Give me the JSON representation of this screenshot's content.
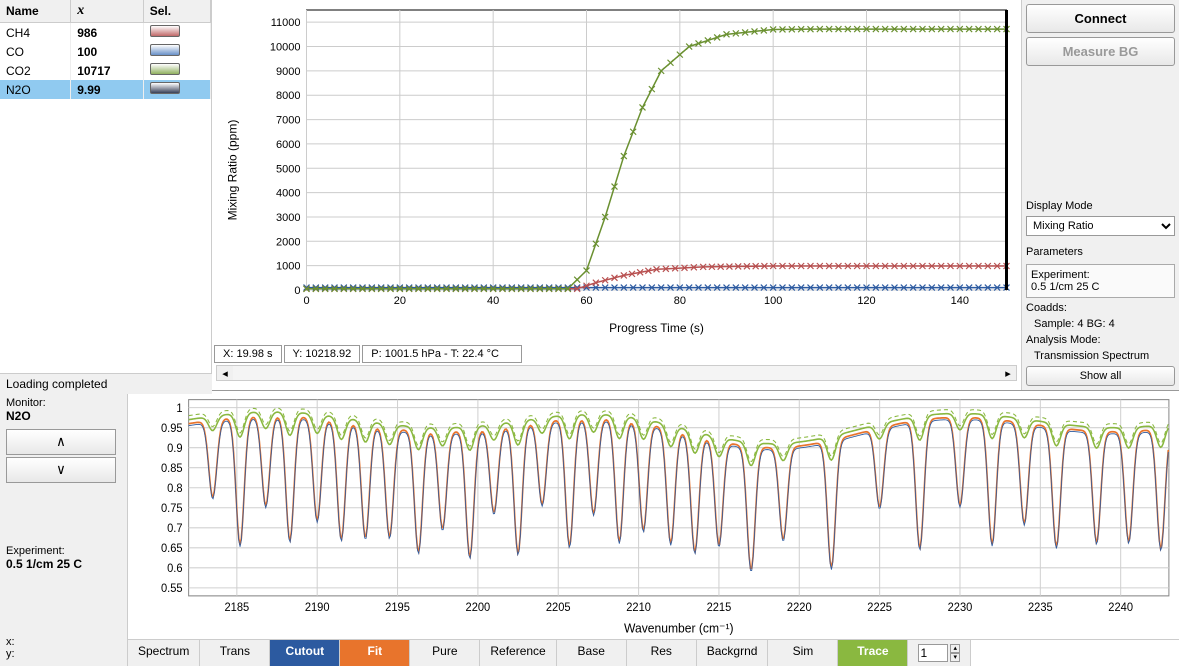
{
  "species_table": {
    "headers": [
      "Name",
      "x",
      "Sel."
    ],
    "rows": [
      {
        "name": "CH4",
        "val": "986",
        "color": "#c06868",
        "selected": false
      },
      {
        "name": "CO",
        "val": "100",
        "color": "#6890c8",
        "selected": false
      },
      {
        "name": "CO2",
        "val": "10717",
        "color": "#90b060",
        "selected": false
      },
      {
        "name": "N2O",
        "val": "9.99",
        "color": "#384058",
        "selected": true
      }
    ]
  },
  "status_text": "Loading completed",
  "main_chart": {
    "ylabel": "Mixing Ratio (ppm)",
    "xlabel": "Progress Time (s)",
    "xlim": [
      0,
      150
    ],
    "xtick_step": 20,
    "ylim": [
      0,
      11500
    ],
    "ytick_step": 1000,
    "grid_color": "#cccccc",
    "series": [
      {
        "color": "#2c5aa0",
        "data": [
          [
            0,
            100
          ],
          [
            150,
            100
          ]
        ]
      },
      {
        "color": "#b85050",
        "data": [
          [
            0,
            50
          ],
          [
            58,
            50
          ],
          [
            62,
            300
          ],
          [
            68,
            600
          ],
          [
            75,
            850
          ],
          [
            85,
            950
          ],
          [
            100,
            986
          ],
          [
            150,
            986
          ]
        ]
      },
      {
        "color": "#6a9030",
        "data": [
          [
            0,
            50
          ],
          [
            56,
            50
          ],
          [
            60,
            800
          ],
          [
            64,
            3000
          ],
          [
            68,
            5500
          ],
          [
            72,
            7500
          ],
          [
            76,
            9000
          ],
          [
            82,
            10000
          ],
          [
            90,
            10500
          ],
          [
            100,
            10700
          ],
          [
            110,
            10717
          ],
          [
            150,
            10717
          ]
        ]
      }
    ],
    "marker": "x"
  },
  "coord_readout": {
    "x": "X: 19.98 s",
    "y": "Y: 10218.92",
    "pt": "P: 1001.5 hPa - T: 22.4 °C"
  },
  "right": {
    "connect": "Connect",
    "measure": "Measure BG",
    "display_mode_label": "Display Mode",
    "display_mode": "Mixing Ratio",
    "params_label": "Parameters",
    "experiment_label": "Experiment:",
    "experiment_val": "0.5 1/cm 25 C",
    "coadds_label": "Coadds:",
    "coadds_val": "Sample: 4  BG: 4",
    "analysis_label": "Analysis Mode:",
    "analysis_val": "Transmission Spectrum",
    "show_all": "Show all"
  },
  "monitor": {
    "label": "Monitor:",
    "species": "N2O",
    "exp_label": "Experiment:",
    "exp_val": "0.5 1/cm 25 C",
    "x_label": "x:",
    "y_label": "y:"
  },
  "spectrum_chart": {
    "ylabel_none": "",
    "xlabel": "Wavenumber  (cm⁻¹)",
    "xlim": [
      2182,
      2243
    ],
    "xtick_step": 5,
    "ylim": [
      0.53,
      1.02
    ],
    "yticks": [
      0.55,
      0.6,
      0.65,
      0.7,
      0.75,
      0.8,
      0.85,
      0.9,
      0.95,
      1
    ],
    "grid_color": "#d0d0d0",
    "orange_color": "#e8742c",
    "green_color": "#8ab840",
    "blue_color": "#2c5aa0"
  },
  "tabs": [
    "Spectrum",
    "Trans",
    "Cutout",
    "Fit",
    "Pure",
    "Reference",
    "Base",
    "Res",
    "Backgrnd",
    "Sim",
    "Trace"
  ],
  "trace_num": "1"
}
